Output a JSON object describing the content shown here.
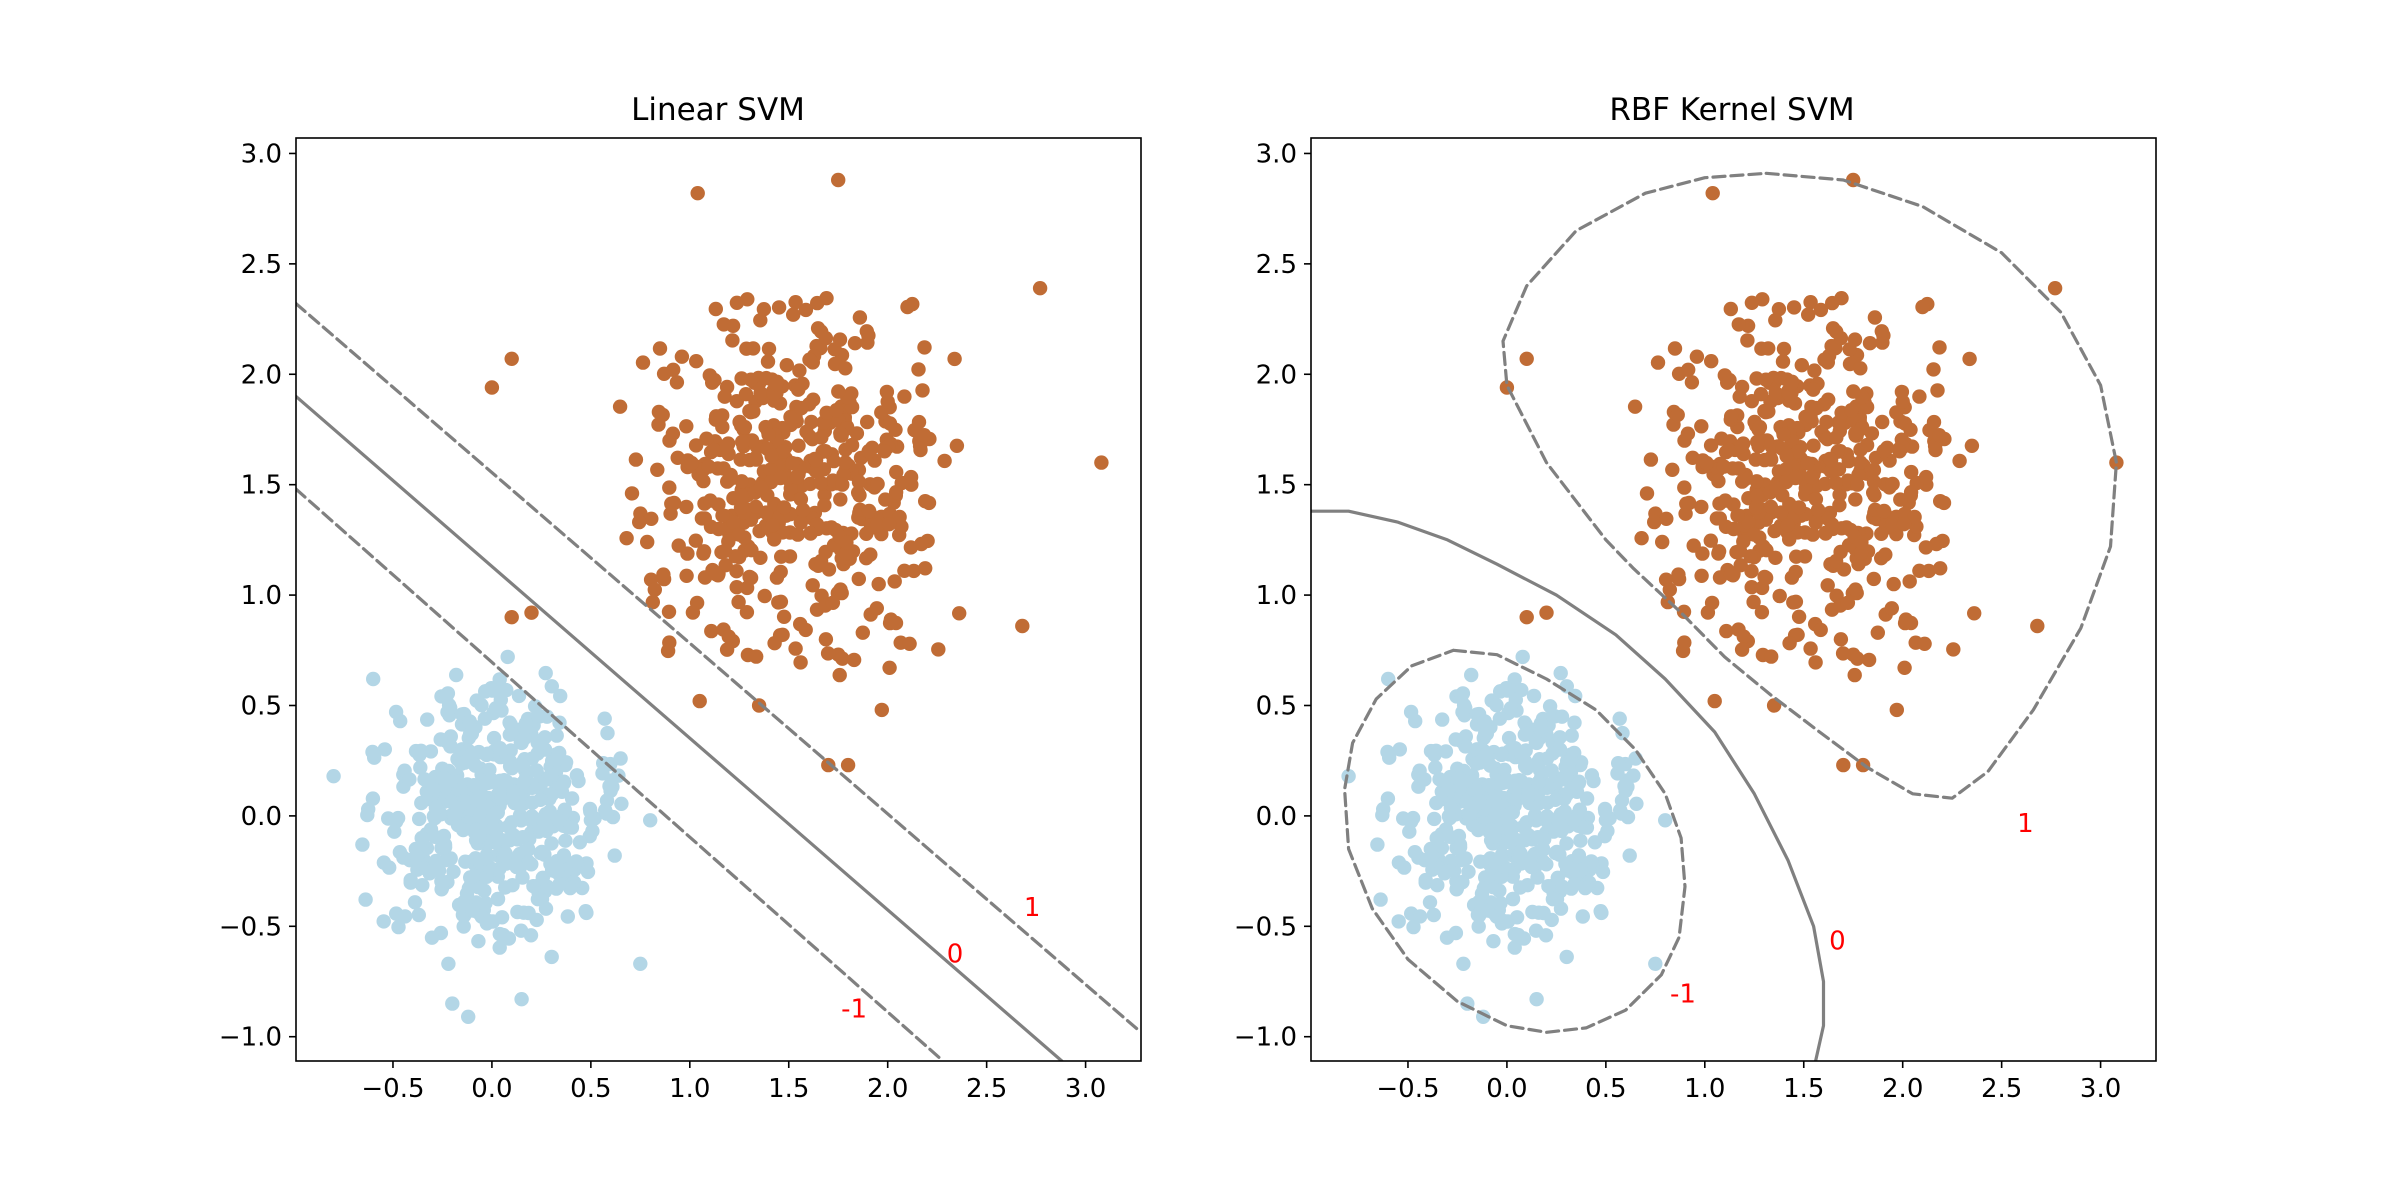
{
  "chart_data": [
    {
      "type": "scatter",
      "title": "Linear SVM",
      "xlabel": "",
      "ylabel": "",
      "xlim": [
        -0.99,
        3.28
      ],
      "ylim": [
        -1.11,
        3.07
      ],
      "xticks": [
        -0.5,
        0.0,
        0.5,
        1.0,
        1.5,
        2.0,
        2.5,
        3.0
      ],
      "xtick_labels": [
        "−0.5",
        "0.0",
        "0.5",
        "1.0",
        "1.5",
        "2.0",
        "2.5",
        "3.0"
      ],
      "yticks": [
        -1.0,
        -0.5,
        0.0,
        0.5,
        1.0,
        1.5,
        2.0,
        2.5,
        3.0
      ],
      "ytick_labels": [
        "−1.0",
        "−0.5",
        "0.0",
        "0.5",
        "1.0",
        "1.5",
        "2.0",
        "2.5",
        "3.0"
      ],
      "grid": false,
      "class_colors": {
        "class0": "#b3d6e6",
        "class1": "#c06c35"
      },
      "class_clusters": [
        {
          "class": 0,
          "mean": [
            0.0,
            0.0
          ],
          "std": 0.3,
          "n": 500,
          "outliers": [
            [
              -0.8,
              0.18
            ],
            [
              -0.6,
              0.62
            ],
            [
              0.8,
              -0.02
            ],
            [
              0.75,
              -0.67
            ],
            [
              -0.22,
              -0.67
            ],
            [
              0.15,
              -0.83
            ],
            [
              -0.2,
              -0.85
            ],
            [
              -0.12,
              -0.91
            ],
            [
              0.08,
              0.72
            ],
            [
              0.57,
              0.44
            ]
          ]
        },
        {
          "class": 1,
          "mean": [
            1.5,
            1.5
          ],
          "std": 0.4,
          "n": 500,
          "outliers": [
            [
              0.0,
              1.94
            ],
            [
              0.1,
              2.07
            ],
            [
              0.1,
              0.9
            ],
            [
              0.2,
              0.92
            ],
            [
              3.08,
              1.6
            ],
            [
              2.77,
              2.39
            ],
            [
              1.75,
              2.88
            ],
            [
              1.04,
              2.82
            ],
            [
              2.68,
              0.86
            ],
            [
              1.7,
              0.23
            ],
            [
              1.8,
              0.23
            ],
            [
              1.05,
              0.52
            ],
            [
              1.35,
              0.5
            ],
            [
              1.97,
              0.48
            ]
          ]
        }
      ],
      "contours": [
        {
          "level": -1,
          "label": "-1",
          "style": "dashed",
          "x": [
            -0.99,
            2.28
          ],
          "y": [
            1.48,
            -1.11
          ]
        },
        {
          "level": 0,
          "label": "0",
          "style": "solid",
          "x": [
            -0.99,
            2.88
          ],
          "y": [
            1.9,
            -1.11
          ]
        },
        {
          "level": 1,
          "label": "1",
          "style": "dashed",
          "x": [
            -0.99,
            3.28
          ],
          "y": [
            2.32,
            -0.98
          ]
        }
      ],
      "contour_labels": [
        {
          "text": "1",
          "x": 2.73,
          "y": -0.42
        },
        {
          "text": "0",
          "x": 2.34,
          "y": -0.63
        },
        {
          "text": "-1",
          "x": 1.83,
          "y": -0.88
        }
      ],
      "contour_color": "#808080",
      "label_color": "#ff0000"
    },
    {
      "type": "scatter",
      "title": "RBF Kernel SVM",
      "xlabel": "",
      "ylabel": "",
      "xlim": [
        -0.99,
        3.28
      ],
      "ylim": [
        -1.11,
        3.07
      ],
      "xticks": [
        -0.5,
        0.0,
        0.5,
        1.0,
        1.5,
        2.0,
        2.5,
        3.0
      ],
      "xtick_labels": [
        "−0.5",
        "0.0",
        "0.5",
        "1.0",
        "1.5",
        "2.0",
        "2.5",
        "3.0"
      ],
      "yticks": [
        -1.0,
        -0.5,
        0.0,
        0.5,
        1.0,
        1.5,
        2.0,
        2.5,
        3.0
      ],
      "ytick_labels": [
        "−1.0",
        "−0.5",
        "0.0",
        "0.5",
        "1.0",
        "1.5",
        "2.0",
        "2.5",
        "3.0"
      ],
      "grid": false,
      "class_colors": {
        "class0": "#b3d6e6",
        "class1": "#c06c35"
      },
      "class_clusters": [
        {
          "class": 0,
          "mean": [
            0.0,
            0.0
          ],
          "std": 0.3,
          "n": 500,
          "outliers": [
            [
              -0.8,
              0.18
            ],
            [
              -0.6,
              0.62
            ],
            [
              0.8,
              -0.02
            ],
            [
              0.75,
              -0.67
            ],
            [
              -0.22,
              -0.67
            ],
            [
              0.15,
              -0.83
            ],
            [
              -0.2,
              -0.85
            ],
            [
              -0.12,
              -0.91
            ],
            [
              0.08,
              0.72
            ],
            [
              0.57,
              0.44
            ]
          ]
        },
        {
          "class": 1,
          "mean": [
            1.5,
            1.5
          ],
          "std": 0.4,
          "n": 500,
          "outliers": [
            [
              0.0,
              1.94
            ],
            [
              0.1,
              2.07
            ],
            [
              0.1,
              0.9
            ],
            [
              0.2,
              0.92
            ],
            [
              3.08,
              1.6
            ],
            [
              2.77,
              2.39
            ],
            [
              1.75,
              2.88
            ],
            [
              1.04,
              2.82
            ],
            [
              2.68,
              0.86
            ],
            [
              1.7,
              0.23
            ],
            [
              1.8,
              0.23
            ],
            [
              1.05,
              0.52
            ],
            [
              1.35,
              0.5
            ],
            [
              1.97,
              0.48
            ]
          ]
        }
      ],
      "contours": [
        {
          "level": 0,
          "label": "0",
          "style": "solid",
          "x": [
            -0.99,
            -0.8,
            -0.55,
            -0.3,
            -0.05,
            0.25,
            0.55,
            0.8,
            1.05,
            1.25,
            1.42,
            1.55,
            1.6,
            1.6,
            1.56
          ],
          "y": [
            1.38,
            1.38,
            1.33,
            1.25,
            1.14,
            1.0,
            0.82,
            0.62,
            0.38,
            0.1,
            -0.2,
            -0.5,
            -0.75,
            -0.95,
            -1.11
          ]
        },
        {
          "level": -1,
          "label": "-1",
          "style": "dashed",
          "x": [
            -0.27,
            -0.05,
            0.2,
            0.45,
            0.65,
            0.8,
            0.88,
            0.9,
            0.87,
            0.78,
            0.6,
            0.4,
            0.2,
            0.0,
            -0.25,
            -0.5,
            -0.68,
            -0.8,
            -0.82,
            -0.78,
            -0.66,
            -0.48,
            -0.27
          ],
          "y": [
            0.75,
            0.73,
            0.62,
            0.48,
            0.3,
            0.1,
            -0.1,
            -0.32,
            -0.55,
            -0.72,
            -0.88,
            -0.96,
            -0.98,
            -0.95,
            -0.84,
            -0.65,
            -0.42,
            -0.15,
            0.12,
            0.33,
            0.53,
            0.68,
            0.75
          ]
        },
        {
          "level": 1,
          "label": "1",
          "style": "dashed",
          "x": [
            1.31,
            1.7,
            2.1,
            2.5,
            2.8,
            3.0,
            3.08,
            3.05,
            2.9,
            2.66,
            2.43,
            2.25,
            2.05,
            1.82,
            1.58,
            1.33,
            1.1,
            0.88,
            0.64,
            0.5,
            0.2,
            0.0,
            -0.02,
            0.1,
            0.35,
            0.7,
            1.0,
            1.31
          ],
          "y": [
            2.91,
            2.88,
            2.76,
            2.55,
            2.28,
            1.95,
            1.6,
            1.22,
            0.85,
            0.48,
            0.2,
            0.08,
            0.1,
            0.22,
            0.38,
            0.55,
            0.72,
            0.92,
            1.12,
            1.25,
            1.6,
            1.95,
            2.15,
            2.4,
            2.65,
            2.82,
            2.89,
            2.91
          ]
        }
      ],
      "contour_labels": [
        {
          "text": "1",
          "x": 2.62,
          "y": -0.04
        },
        {
          "text": "0",
          "x": 1.67,
          "y": -0.57
        },
        {
          "text": "-1",
          "x": 0.89,
          "y": -0.81
        }
      ],
      "contour_color": "#808080",
      "label_color": "#ff0000"
    }
  ]
}
